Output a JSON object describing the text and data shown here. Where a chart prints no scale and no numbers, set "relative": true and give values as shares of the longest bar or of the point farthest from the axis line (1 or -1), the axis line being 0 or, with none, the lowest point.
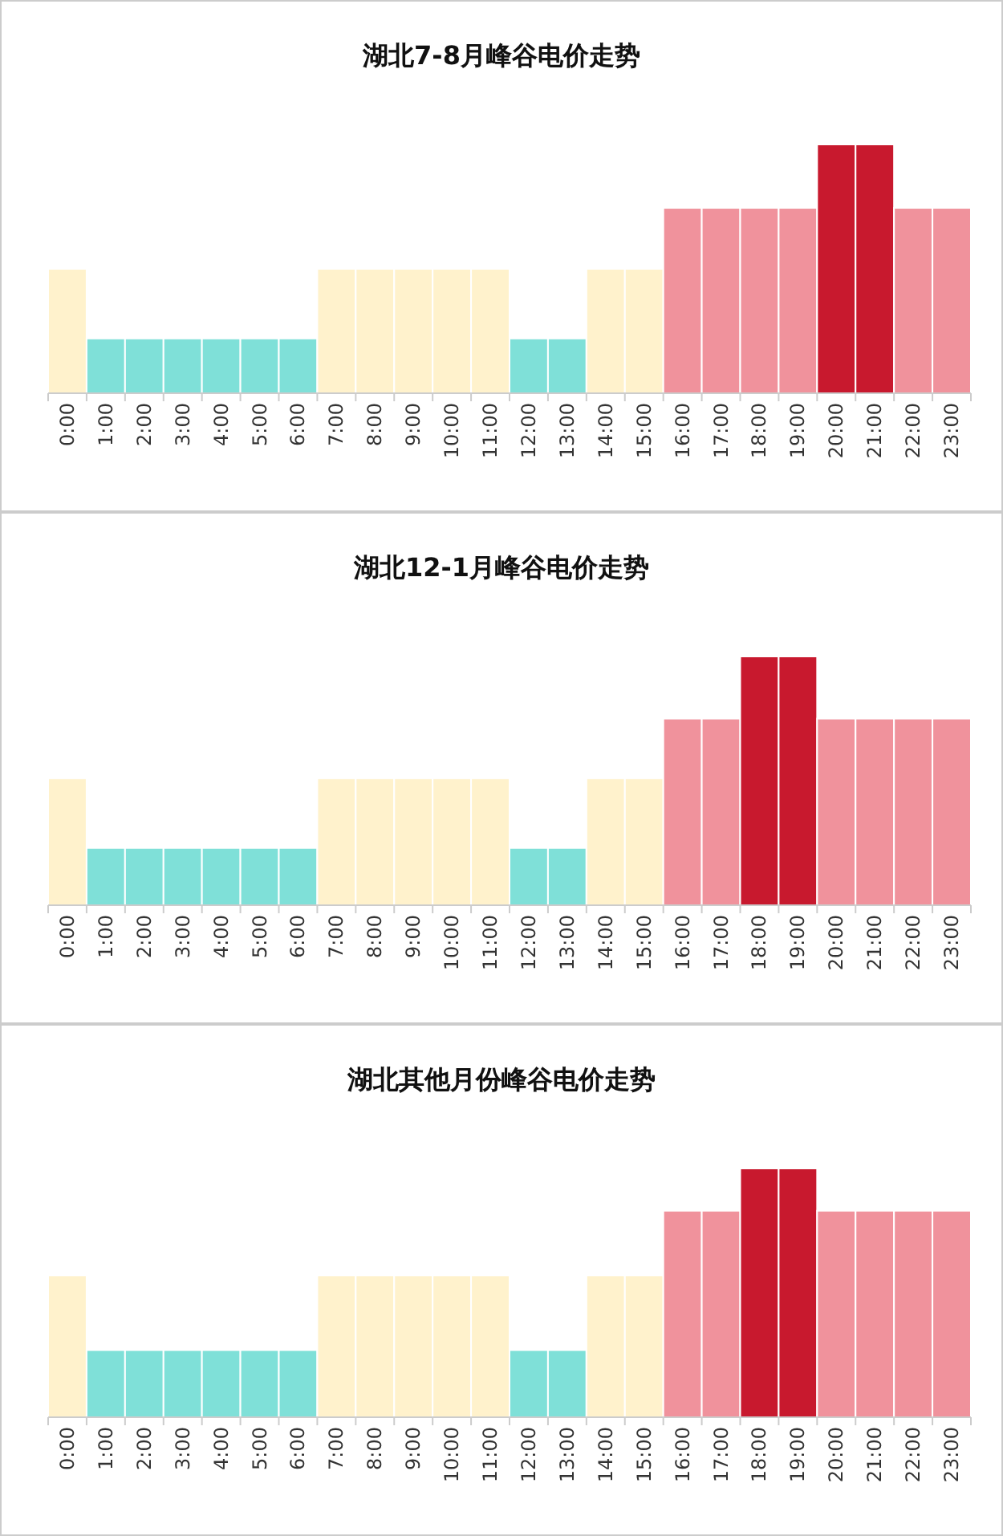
{
  "chart_data": [
    {
      "type": "bar",
      "title": "湖北7-8月峰谷电价走势",
      "relative": true,
      "categories": [
        "0:00",
        "1:00",
        "2:00",
        "3:00",
        "4:00",
        "5:00",
        "6:00",
        "7:00",
        "8:00",
        "9:00",
        "10:00",
        "11:00",
        "12:00",
        "13:00",
        "14:00",
        "15:00",
        "16:00",
        "17:00",
        "18:00",
        "19:00",
        "20:00",
        "21:00",
        "22:00",
        "23:00"
      ],
      "values": [
        0.5,
        0.22,
        0.22,
        0.22,
        0.22,
        0.22,
        0.22,
        0.5,
        0.5,
        0.5,
        0.5,
        0.5,
        0.22,
        0.22,
        0.5,
        0.5,
        0.745,
        0.745,
        0.745,
        0.745,
        1,
        1,
        0.745,
        0.745
      ],
      "colors": [
        "#fff2cc",
        "#7fe0d8",
        "#7fe0d8",
        "#7fe0d8",
        "#7fe0d8",
        "#7fe0d8",
        "#7fe0d8",
        "#fff2cc",
        "#fff2cc",
        "#fff2cc",
        "#fff2cc",
        "#fff2cc",
        "#7fe0d8",
        "#7fe0d8",
        "#fff2cc",
        "#fff2cc",
        "#f0929c",
        "#f0929c",
        "#f0929c",
        "#f0929c",
        "#c8192e",
        "#c8192e",
        "#f0929c",
        "#f0929c"
      ]
    },
    {
      "type": "bar",
      "title": "湖北12-1月峰谷电价走势",
      "relative": true,
      "categories": [
        "0:00",
        "1:00",
        "2:00",
        "3:00",
        "4:00",
        "5:00",
        "6:00",
        "7:00",
        "8:00",
        "9:00",
        "10:00",
        "11:00",
        "12:00",
        "13:00",
        "14:00",
        "15:00",
        "16:00",
        "17:00",
        "18:00",
        "19:00",
        "20:00",
        "21:00",
        "22:00",
        "23:00"
      ],
      "values": [
        0.51,
        0.23,
        0.23,
        0.23,
        0.23,
        0.23,
        0.23,
        0.51,
        0.51,
        0.51,
        0.51,
        0.51,
        0.23,
        0.23,
        0.51,
        0.51,
        0.75,
        0.75,
        1,
        1,
        0.75,
        0.75,
        0.75,
        0.75
      ],
      "colors": [
        "#fff2cc",
        "#7fe0d8",
        "#7fe0d8",
        "#7fe0d8",
        "#7fe0d8",
        "#7fe0d8",
        "#7fe0d8",
        "#fff2cc",
        "#fff2cc",
        "#fff2cc",
        "#fff2cc",
        "#fff2cc",
        "#7fe0d8",
        "#7fe0d8",
        "#fff2cc",
        "#fff2cc",
        "#f0929c",
        "#f0929c",
        "#c8192e",
        "#c8192e",
        "#f0929c",
        "#f0929c",
        "#f0929c",
        "#f0929c"
      ]
    },
    {
      "type": "bar",
      "title": "湖北其他月份峰谷电价走势",
      "relative": true,
      "categories": [
        "0:00",
        "1:00",
        "2:00",
        "3:00",
        "4:00",
        "5:00",
        "6:00",
        "7:00",
        "8:00",
        "9:00",
        "10:00",
        "11:00",
        "12:00",
        "13:00",
        "14:00",
        "15:00",
        "16:00",
        "17:00",
        "18:00",
        "19:00",
        "20:00",
        "21:00",
        "22:00",
        "23:00"
      ],
      "values": [
        0.57,
        0.27,
        0.27,
        0.27,
        0.27,
        0.27,
        0.27,
        0.57,
        0.57,
        0.57,
        0.57,
        0.57,
        0.27,
        0.27,
        0.57,
        0.57,
        0.83,
        0.83,
        1,
        1,
        0.83,
        0.83,
        0.83,
        0.83
      ],
      "colors": [
        "#fff2cc",
        "#7fe0d8",
        "#7fe0d8",
        "#7fe0d8",
        "#7fe0d8",
        "#7fe0d8",
        "#7fe0d8",
        "#fff2cc",
        "#fff2cc",
        "#fff2cc",
        "#fff2cc",
        "#fff2cc",
        "#7fe0d8",
        "#7fe0d8",
        "#fff2cc",
        "#fff2cc",
        "#f0929c",
        "#f0929c",
        "#c8192e",
        "#c8192e",
        "#f0929c",
        "#f0929c",
        "#f0929c",
        "#f0929c"
      ]
    }
  ]
}
